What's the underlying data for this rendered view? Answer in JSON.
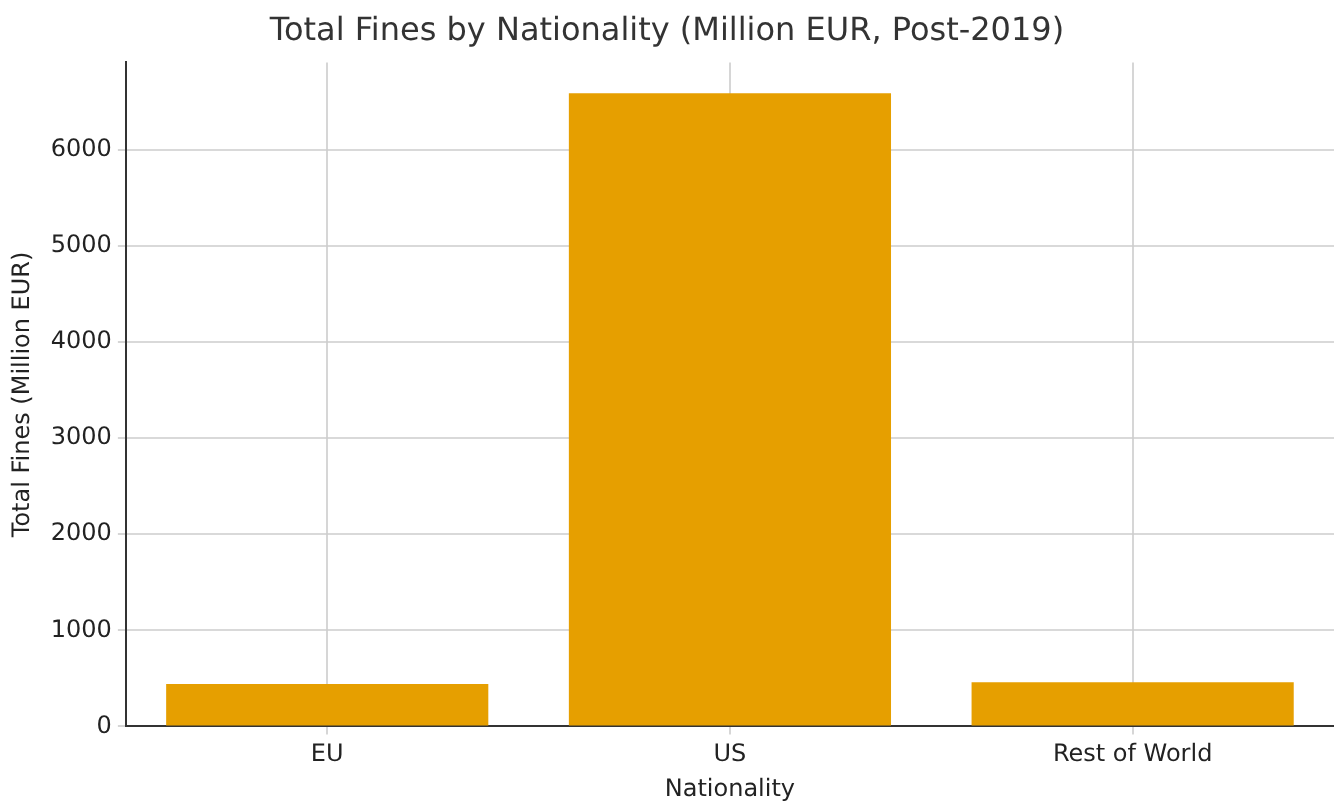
{
  "chart_data": {
    "type": "bar",
    "title": "Total Fines by Nationality (Million EUR, Post-2019)",
    "xlabel": "Nationality",
    "ylabel": "Total Fines (Million EUR)",
    "categories": [
      "EU",
      "US",
      "Rest of World"
    ],
    "series": [
      {
        "color": "#e69f00",
        "values": [
          440,
          6590,
          460
        ]
      }
    ],
    "ylim": [
      0,
      6910
    ],
    "yticks": [
      0,
      1000,
      2000,
      3000,
      4000,
      5000,
      6000
    ],
    "grid": true
  }
}
